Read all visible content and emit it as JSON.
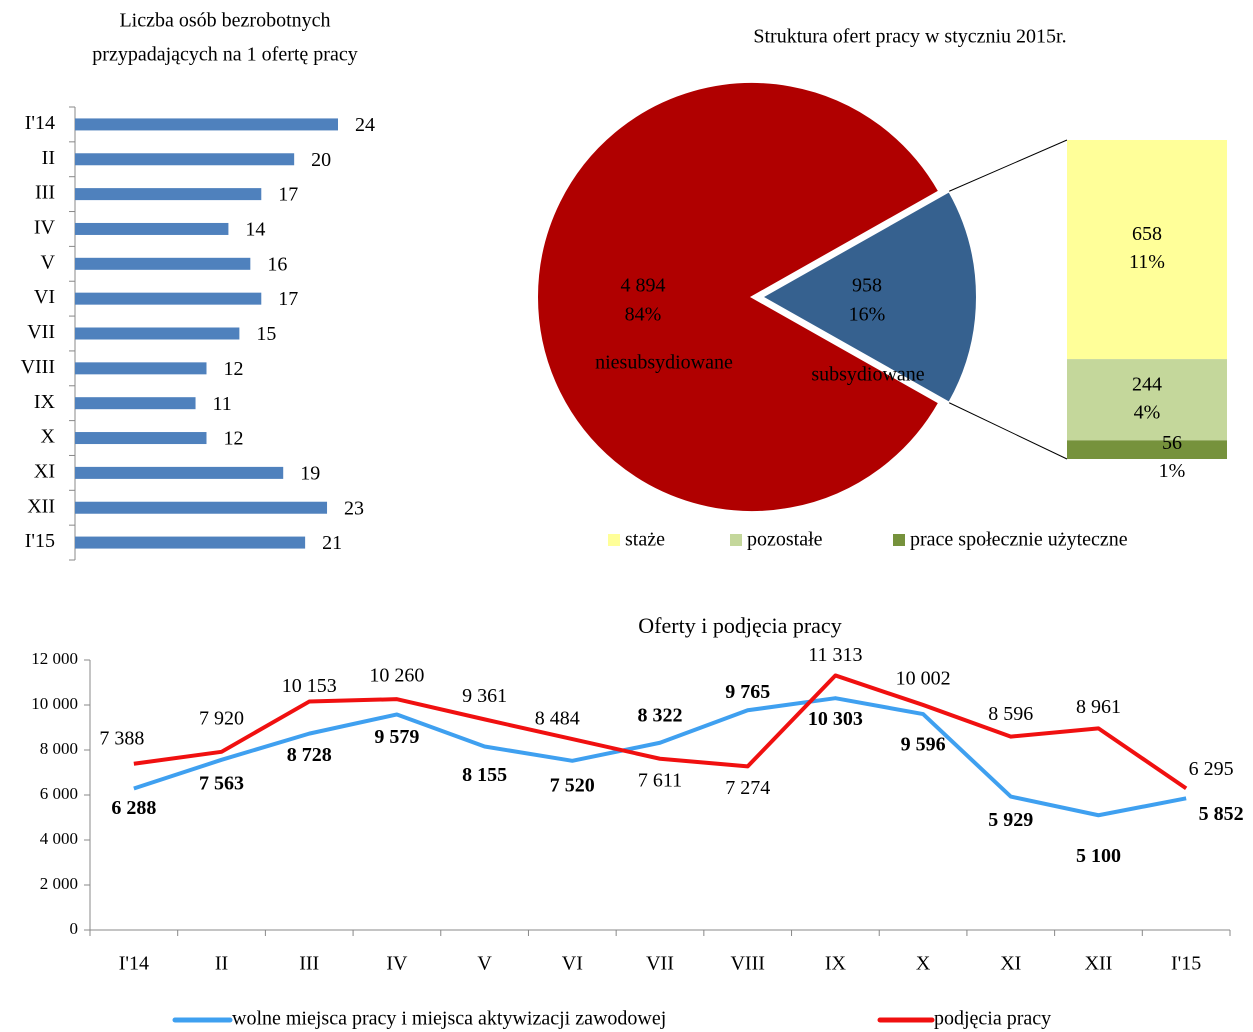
{
  "chart_data": [
    {
      "type": "hbar",
      "title": [
        "Liczba osób bezrobotnych",
        "przypadających na 1 ofertę pracy"
      ],
      "categories": [
        "I'14",
        "II",
        "III",
        "IV",
        "V",
        "VI",
        "VII",
        "VIII",
        "IX",
        "X",
        "XI",
        "XII",
        "I'15"
      ],
      "values": [
        24,
        20,
        17,
        14,
        16,
        17,
        15,
        12,
        11,
        12,
        19,
        23,
        21
      ],
      "color": "#4f81bd"
    },
    {
      "type": "pie",
      "title": "Struktura ofert pracy w styczniu 2015r.",
      "categories": [
        "niesubsydiowane",
        "subsydiowane"
      ],
      "values": [
        4894,
        958
      ],
      "value_labels": [
        "4 894",
        "958"
      ],
      "percents": [
        84,
        16
      ],
      "percent_labels": [
        "84%",
        "16%"
      ],
      "colors": [
        "#b00000",
        "#36618f"
      ],
      "breakdown": {
        "categories": [
          "staże",
          "pozostałe",
          "prace społecznie użyteczne"
        ],
        "values": [
          658,
          244,
          56
        ],
        "percents": [
          11,
          4,
          1
        ],
        "percent_labels": [
          "11%",
          "4%",
          "1%"
        ],
        "colors": [
          "#ffff99",
          "#c4d79b",
          "#76923c"
        ]
      }
    },
    {
      "type": "line",
      "title": "Oferty i podjęcia pracy",
      "categories": [
        "I'14",
        "II",
        "III",
        "IV",
        "V",
        "VI",
        "VII",
        "VIII",
        "IX",
        "X",
        "XI",
        "XII",
        "I'15"
      ],
      "ylim": [
        0,
        12000
      ],
      "yticks": [
        0,
        {
          "value": 2000,
          "label": "2 000"
        },
        {
          "value": 4000,
          "label": "4 000"
        },
        {
          "value": 6000,
          "label": "6 000"
        },
        {
          "value": 8000,
          "label": "8 000"
        },
        {
          "value": 10000,
          "label": "10 000"
        },
        {
          "value": 12000,
          "label": "12 000"
        }
      ],
      "series": [
        {
          "name": "wolne miejsca pracy i miejsca aktywizacji zawodowej",
          "color": "#3fa0f0",
          "values": [
            6288,
            7563,
            8728,
            9579,
            8155,
            7520,
            8322,
            9765,
            10303,
            9596,
            5929,
            5100,
            5852
          ],
          "value_labels": [
            "6 288",
            "7 563",
            "8 728",
            "9 579",
            "8 155",
            "7 520",
            "8 322",
            "9 765",
            "10 303",
            "9 596",
            "5 929",
            "5 100",
            "5 852"
          ]
        },
        {
          "name": "podjęcia pracy",
          "color": "#f01010",
          "values": [
            7388,
            7920,
            10153,
            10260,
            9361,
            8484,
            7611,
            7274,
            11313,
            10002,
            8596,
            8961,
            6295
          ],
          "value_labels": [
            "7 388",
            "7 920",
            "10 153",
            "10 260",
            "9 361",
            "8 484",
            "7 611",
            "7 274",
            "11 313",
            "10 002",
            "8 596",
            "8 961",
            "6 295"
          ]
        }
      ]
    }
  ]
}
